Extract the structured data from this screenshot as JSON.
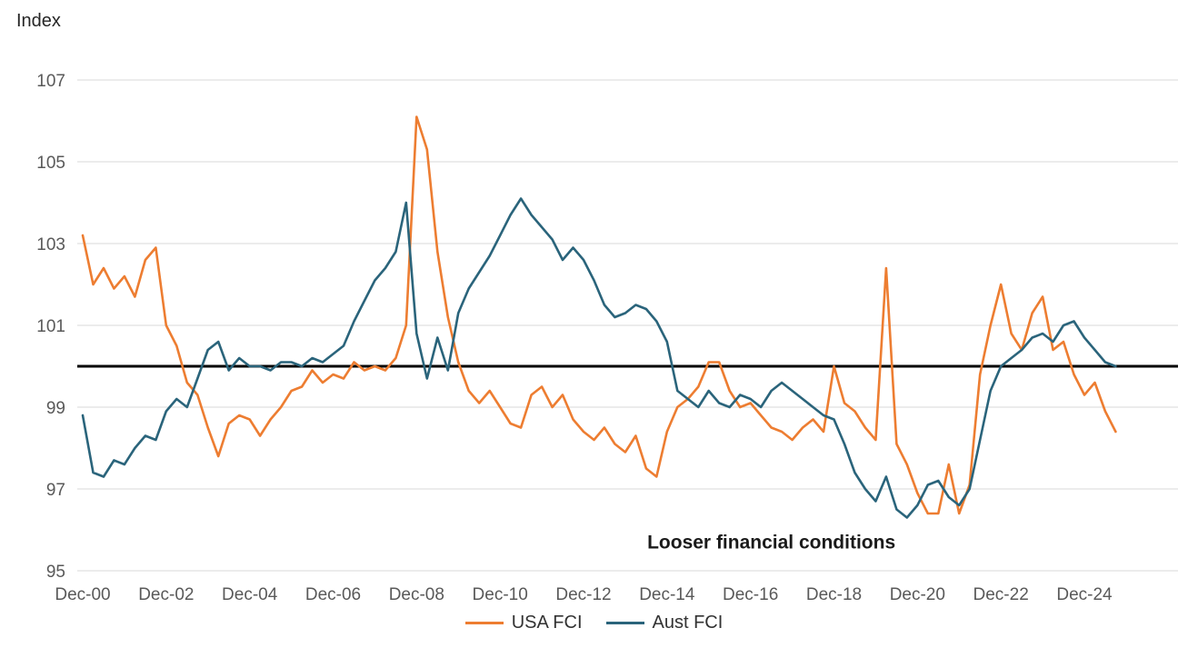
{
  "theme": {
    "background": "#FFFFFF",
    "gridline": "#D9D9D9",
    "axis_text": "#595959",
    "title_text": "#262626",
    "annotation_text": "#1A1A1A",
    "reference_line": "#000000"
  },
  "chart_data": {
    "type": "line",
    "title": "",
    "ylabel": "Index",
    "xlabel": "",
    "ylim": [
      95,
      107
    ],
    "y_ticks": [
      95,
      97,
      99,
      101,
      103,
      105,
      107
    ],
    "x_tick_every": 8,
    "grid": "horizontal",
    "legend_position": "bottom",
    "reference_line_y": 100,
    "annotation": {
      "text": "Looser financial conditions",
      "x_label": "Jun-17",
      "y_value": 95.55
    },
    "x": [
      "Dec-00",
      "Mar-01",
      "Jun-01",
      "Sep-01",
      "Dec-01",
      "Mar-02",
      "Jun-02",
      "Sep-02",
      "Dec-02",
      "Mar-03",
      "Jun-03",
      "Sep-03",
      "Dec-03",
      "Mar-04",
      "Jun-04",
      "Sep-04",
      "Dec-04",
      "Mar-05",
      "Jun-05",
      "Sep-05",
      "Dec-05",
      "Mar-06",
      "Jun-06",
      "Sep-06",
      "Dec-06",
      "Mar-07",
      "Jun-07",
      "Sep-07",
      "Dec-07",
      "Mar-08",
      "Jun-08",
      "Sep-08",
      "Dec-08",
      "Mar-09",
      "Jun-09",
      "Sep-09",
      "Dec-09",
      "Mar-10",
      "Jun-10",
      "Sep-10",
      "Dec-10",
      "Mar-11",
      "Jun-11",
      "Sep-11",
      "Dec-11",
      "Mar-12",
      "Jun-12",
      "Sep-12",
      "Dec-12",
      "Mar-13",
      "Jun-13",
      "Sep-13",
      "Dec-13",
      "Mar-14",
      "Jun-14",
      "Sep-14",
      "Dec-14",
      "Mar-15",
      "Jun-15",
      "Sep-15",
      "Dec-15",
      "Mar-16",
      "Jun-16",
      "Sep-16",
      "Dec-16",
      "Mar-17",
      "Jun-17",
      "Sep-17",
      "Dec-17",
      "Mar-18",
      "Jun-18",
      "Sep-18",
      "Dec-18",
      "Mar-19",
      "Jun-19",
      "Sep-19",
      "Dec-19",
      "Mar-20",
      "Jun-20",
      "Sep-20",
      "Dec-20",
      "Mar-21",
      "Jun-21",
      "Sep-21",
      "Dec-21",
      "Mar-22",
      "Jun-22",
      "Sep-22",
      "Dec-22",
      "Mar-23",
      "Jun-23",
      "Sep-23",
      "Dec-23",
      "Mar-24",
      "Jun-24",
      "Sep-24",
      "Dec-24",
      "Mar-25",
      "Jun-25",
      "Sep-25"
    ],
    "series": [
      {
        "name": "USA FCI",
        "color": "#ED7D31",
        "values": [
          103.2,
          102.0,
          102.4,
          101.9,
          102.2,
          101.7,
          102.6,
          102.9,
          101.0,
          100.5,
          99.6,
          99.3,
          98.5,
          97.8,
          98.6,
          98.8,
          98.7,
          98.3,
          98.7,
          99.0,
          99.4,
          99.5,
          99.9,
          99.6,
          99.8,
          99.7,
          100.1,
          99.9,
          100.0,
          99.9,
          100.2,
          101.0,
          106.1,
          105.3,
          102.8,
          101.2,
          100.1,
          99.4,
          99.1,
          99.4,
          99.0,
          98.6,
          98.5,
          99.3,
          99.5,
          99.0,
          99.3,
          98.7,
          98.4,
          98.2,
          98.5,
          98.1,
          97.9,
          98.3,
          97.5,
          97.3,
          98.4,
          99.0,
          99.2,
          99.5,
          100.1,
          100.1,
          99.4,
          99.0,
          99.1,
          98.8,
          98.5,
          98.4,
          98.2,
          98.5,
          98.7,
          98.4,
          100.0,
          99.1,
          98.9,
          98.5,
          98.2,
          102.4,
          98.1,
          97.6,
          96.9,
          96.4,
          96.4,
          97.6,
          96.4,
          97.1,
          99.8,
          101.0,
          102.0,
          100.8,
          100.4,
          101.3,
          101.7,
          100.4,
          100.6,
          99.8,
          99.3,
          99.6,
          98.9,
          98.4
        ]
      },
      {
        "name": "Aust FCI",
        "color": "#2A647B",
        "values": [
          98.8,
          97.4,
          97.3,
          97.7,
          97.6,
          98.0,
          98.3,
          98.2,
          98.9,
          99.2,
          99.0,
          99.7,
          100.4,
          100.6,
          99.9,
          100.2,
          100.0,
          100.0,
          99.9,
          100.1,
          100.1,
          100.0,
          100.2,
          100.1,
          100.3,
          100.5,
          101.1,
          101.6,
          102.1,
          102.4,
          102.8,
          104.0,
          100.8,
          99.7,
          100.7,
          99.9,
          101.3,
          101.9,
          102.3,
          102.7,
          103.2,
          103.7,
          104.1,
          103.7,
          103.4,
          103.1,
          102.6,
          102.9,
          102.6,
          102.1,
          101.5,
          101.2,
          101.3,
          101.5,
          101.4,
          101.1,
          100.6,
          99.4,
          99.2,
          99.0,
          99.4,
          99.1,
          99.0,
          99.3,
          99.2,
          99.0,
          99.4,
          99.6,
          99.4,
          99.2,
          99.0,
          98.8,
          98.7,
          98.1,
          97.4,
          97.0,
          96.7,
          97.3,
          96.5,
          96.3,
          96.6,
          97.1,
          97.2,
          96.8,
          96.6,
          97.0,
          98.2,
          99.4,
          100.0,
          100.2,
          100.4,
          100.7,
          100.8,
          100.6,
          101.0,
          101.1,
          100.7,
          100.4,
          100.1,
          100.0
        ]
      }
    ]
  }
}
